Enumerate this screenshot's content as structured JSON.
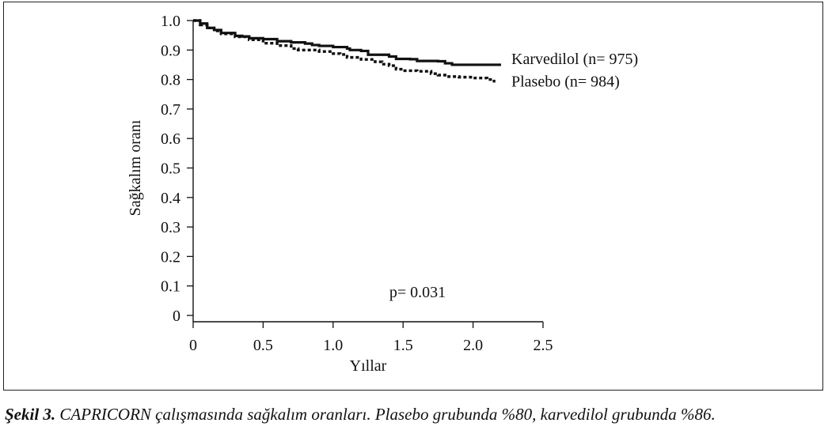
{
  "chart_data": {
    "type": "line",
    "xlabel": "Yıllar",
    "ylabel": "Sağkalım oranı",
    "xlim": [
      0,
      2.5
    ],
    "ylim": [
      0,
      1.0
    ],
    "xticks": [
      "0",
      "0.5",
      "1.0",
      "1.5",
      "2.0",
      "2.5"
    ],
    "yticks": [
      "0",
      "0.1",
      "0.2",
      "0.3",
      "0.4",
      "0.5",
      "0.6",
      "0.7",
      "0.8",
      "0.9",
      "1.0"
    ],
    "grid": false,
    "series": [
      {
        "name": "Karvedilol (n= 975)",
        "style": "solid",
        "color": "#111111",
        "x": [
          0,
          0.05,
          0.1,
          0.15,
          0.2,
          0.3,
          0.35,
          0.4,
          0.5,
          0.6,
          0.7,
          0.8,
          0.85,
          0.9,
          1.0,
          1.1,
          1.12,
          1.15,
          1.2,
          1.25,
          1.3,
          1.4,
          1.45,
          1.5,
          1.55,
          1.6,
          1.7,
          1.75,
          1.8,
          1.85,
          2.0,
          2.2
        ],
        "y": [
          1.0,
          0.99,
          0.975,
          0.968,
          0.958,
          0.948,
          0.946,
          0.94,
          0.937,
          0.93,
          0.926,
          0.922,
          0.917,
          0.914,
          0.91,
          0.905,
          0.9,
          0.9,
          0.897,
          0.884,
          0.884,
          0.878,
          0.87,
          0.87,
          0.869,
          0.863,
          0.863,
          0.862,
          0.855,
          0.85,
          0.85,
          0.85
        ]
      },
      {
        "name": "Plasebo (n= 984)",
        "style": "dotted",
        "color": "#111111",
        "x": [
          0,
          0.05,
          0.1,
          0.15,
          0.2,
          0.3,
          0.4,
          0.5,
          0.6,
          0.7,
          0.75,
          0.8,
          0.9,
          1.0,
          1.05,
          1.1,
          1.2,
          1.3,
          1.35,
          1.4,
          1.45,
          1.5,
          1.6,
          1.7,
          1.75,
          1.8,
          1.9,
          2.0,
          2.1,
          2.15
        ],
        "y": [
          1.0,
          0.985,
          0.975,
          0.965,
          0.955,
          0.945,
          0.935,
          0.923,
          0.915,
          0.905,
          0.9,
          0.9,
          0.895,
          0.888,
          0.885,
          0.875,
          0.868,
          0.86,
          0.852,
          0.847,
          0.835,
          0.83,
          0.828,
          0.82,
          0.815,
          0.81,
          0.808,
          0.805,
          0.8,
          0.79
        ]
      }
    ],
    "annotations": [
      {
        "text": "p= 0.031",
        "x": 1.9,
        "y": 0.08
      }
    ]
  },
  "caption": {
    "lead": "Şekil 3.",
    "text": " CAPRICORN çalışmasında sağkalım oranları. Plasebo grubunda %80, karvedilol grubunda %86."
  }
}
